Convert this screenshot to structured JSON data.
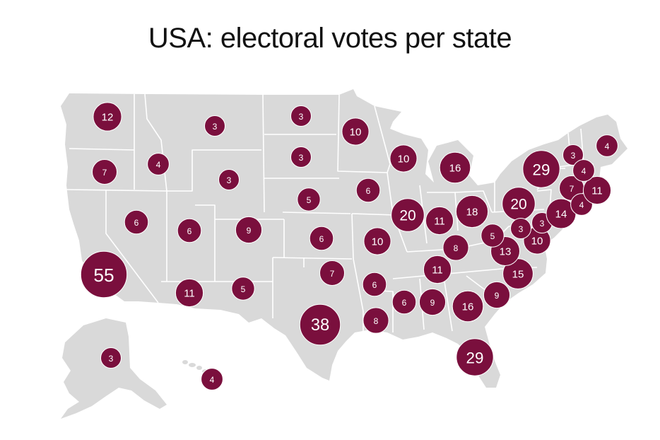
{
  "title": "USA: electoral votes per state",
  "colors": {
    "land": "#d9d9d9",
    "border": "#ffffff",
    "bubble": "#7a0f3d",
    "bubble_text": "#ffffff",
    "title_text": "#111111"
  },
  "states": [
    {
      "id": "wa",
      "votes": 12
    },
    {
      "id": "or",
      "votes": 7
    },
    {
      "id": "ca",
      "votes": 55
    },
    {
      "id": "id",
      "votes": 4
    },
    {
      "id": "nv",
      "votes": 6
    },
    {
      "id": "mt",
      "votes": 3
    },
    {
      "id": "wy",
      "votes": 3
    },
    {
      "id": "ut",
      "votes": 6
    },
    {
      "id": "co",
      "votes": 9
    },
    {
      "id": "az",
      "votes": 11
    },
    {
      "id": "nm",
      "votes": 5
    },
    {
      "id": "nd",
      "votes": 3
    },
    {
      "id": "sd",
      "votes": 3
    },
    {
      "id": "ne",
      "votes": 5
    },
    {
      "id": "ks",
      "votes": 6
    },
    {
      "id": "ok",
      "votes": 7
    },
    {
      "id": "tx",
      "votes": 38
    },
    {
      "id": "mn",
      "votes": 10
    },
    {
      "id": "ia",
      "votes": 6
    },
    {
      "id": "mo",
      "votes": 10
    },
    {
      "id": "ar",
      "votes": 6
    },
    {
      "id": "la",
      "votes": 8
    },
    {
      "id": "wi",
      "votes": 10
    },
    {
      "id": "il",
      "votes": 20
    },
    {
      "id": "mi",
      "votes": 16
    },
    {
      "id": "in",
      "votes": 11
    },
    {
      "id": "oh",
      "votes": 18
    },
    {
      "id": "ky",
      "votes": 8
    },
    {
      "id": "tn",
      "votes": 11
    },
    {
      "id": "ms",
      "votes": 6
    },
    {
      "id": "al",
      "votes": 9
    },
    {
      "id": "ga",
      "votes": 16
    },
    {
      "id": "fl",
      "votes": 29
    },
    {
      "id": "sc",
      "votes": 9
    },
    {
      "id": "nc",
      "votes": 15
    },
    {
      "id": "va",
      "votes": 13
    },
    {
      "id": "wv",
      "votes": 5
    },
    {
      "id": "pa",
      "votes": 20
    },
    {
      "id": "ny",
      "votes": 29
    },
    {
      "id": "md",
      "votes": 10
    },
    {
      "id": "de",
      "votes": 3
    },
    {
      "id": "dc",
      "votes": 3
    },
    {
      "id": "nj",
      "votes": 14
    },
    {
      "id": "ct",
      "votes": 7
    },
    {
      "id": "ri",
      "votes": 4
    },
    {
      "id": "ma",
      "votes": 11
    },
    {
      "id": "vt",
      "votes": 3
    },
    {
      "id": "nh",
      "votes": 4
    },
    {
      "id": "me",
      "votes": 4
    },
    {
      "id": "ak",
      "votes": 3
    },
    {
      "id": "hi",
      "votes": 4
    }
  ]
}
